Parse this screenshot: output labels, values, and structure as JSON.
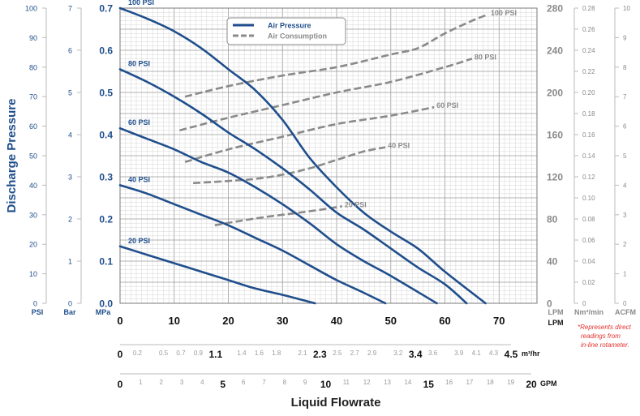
{
  "chart_data": {
    "type": "line",
    "xlabel": "Liquid Flowrate",
    "ylabel": "Discharge Pressure",
    "xlim": [
      0,
      77
    ],
    "ylim": [
      0,
      0.7
    ],
    "grid": true,
    "legend_position": "top-center",
    "colors": {
      "air_pressure": "#1f4e8c",
      "air_consumption": "#8a8a8a",
      "note": "#e0312c"
    },
    "legend": [
      {
        "label": "Air Pressure",
        "style": "solid"
      },
      {
        "label": "Air Consumption",
        "style": "dashed"
      }
    ],
    "axes": {
      "lpm": {
        "unit": "LPM",
        "ticks": [
          "0",
          "10",
          "20",
          "30",
          "40",
          "50",
          "60",
          "70"
        ],
        "values": [
          0,
          10,
          20,
          30,
          40,
          50,
          60,
          70
        ]
      },
      "m3hr": {
        "unit": "m³/hr",
        "major": [
          {
            "label": "0",
            "v": 0
          },
          {
            "label": "1.1",
            "v": 1.1
          },
          {
            "label": "2.3",
            "v": 2.3
          },
          {
            "label": "3.4",
            "v": 3.4
          },
          {
            "label": "4.5",
            "v": 4.5
          }
        ],
        "minor": [
          {
            "label": "0.2",
            "v": 0.2
          },
          {
            "label": "0.5",
            "v": 0.5
          },
          {
            "label": "0.7",
            "v": 0.7
          },
          {
            "label": "0.9",
            "v": 0.9
          },
          {
            "label": "1.4",
            "v": 1.4
          },
          {
            "label": "1.6",
            "v": 1.6
          },
          {
            "label": "1.8",
            "v": 1.8
          },
          {
            "label": "2.1",
            "v": 2.1
          },
          {
            "label": "2.5",
            "v": 2.5
          },
          {
            "label": "2.7",
            "v": 2.7
          },
          {
            "label": "2.9",
            "v": 2.9
          },
          {
            "label": "3.2",
            "v": 3.2
          },
          {
            "label": "3.6",
            "v": 3.6
          },
          {
            "label": "3.9",
            "v": 3.9
          },
          {
            "label": "4.1",
            "v": 4.1
          },
          {
            "label": "4.3",
            "v": 4.3
          }
        ]
      },
      "gpm": {
        "unit": "GPM",
        "major": [
          {
            "label": "0",
            "v": 0
          },
          {
            "label": "5",
            "v": 5
          },
          {
            "label": "10",
            "v": 10
          },
          {
            "label": "15",
            "v": 15
          },
          {
            "label": "20",
            "v": 20
          }
        ],
        "minor": [
          {
            "label": "1",
            "v": 1
          },
          {
            "label": "2",
            "v": 2
          },
          {
            "label": "3",
            "v": 3
          },
          {
            "label": "4",
            "v": 4
          },
          {
            "label": "6",
            "v": 6
          },
          {
            "label": "7",
            "v": 7
          },
          {
            "label": "8",
            "v": 8
          },
          {
            "label": "9",
            "v": 9
          },
          {
            "label": "11",
            "v": 11
          },
          {
            "label": "12",
            "v": 12
          },
          {
            "label": "13",
            "v": 13
          },
          {
            "label": "14",
            "v": 14
          },
          {
            "label": "16",
            "v": 16
          },
          {
            "label": "17",
            "v": 17
          },
          {
            "label": "18",
            "v": 18
          },
          {
            "label": "19",
            "v": 19
          }
        ]
      },
      "psi": {
        "unit": "PSI",
        "ticks": [
          "0",
          "10",
          "20",
          "30",
          "40",
          "50",
          "60",
          "70",
          "80",
          "90",
          "100"
        ],
        "values": [
          0,
          10,
          20,
          30,
          40,
          50,
          60,
          70,
          80,
          90,
          100
        ]
      },
      "bar": {
        "unit": "Bar",
        "ticks": [
          "0",
          "1",
          "2",
          "3",
          "4",
          "5",
          "6",
          "7"
        ],
        "values": [
          0,
          1,
          2,
          3,
          4,
          5,
          6,
          7
        ]
      },
      "mpa": {
        "unit": "MPa",
        "ticks": [
          "0.0",
          "0.1",
          "0.2",
          "0.3",
          "0.4",
          "0.5",
          "0.6",
          "0.7"
        ],
        "values": [
          0,
          0.1,
          0.2,
          0.3,
          0.4,
          0.5,
          0.6,
          0.7
        ]
      },
      "air_lpm": {
        "unit": "LPM",
        "ticks": [
          "0",
          "40",
          "80",
          "120",
          "160",
          "200",
          "240",
          "280"
        ],
        "values": [
          0,
          40,
          80,
          120,
          160,
          200,
          240,
          280
        ]
      },
      "nm3min": {
        "unit": "Nm³/min",
        "ticks": [
          "0",
          "0.02",
          "0.04",
          "0.06",
          "0.08",
          "0.10",
          "0.12",
          "0.14",
          "0.16",
          "0.18",
          "0.20",
          "0.22",
          "0.24",
          "0.26",
          "0.28"
        ],
        "values": [
          0,
          0.02,
          0.04,
          0.06,
          0.08,
          0.1,
          0.12,
          0.14,
          0.16,
          0.18,
          0.2,
          0.22,
          0.24,
          0.26,
          0.28
        ]
      },
      "acfm": {
        "unit": "ACFM",
        "ticks": [
          "0",
          "1",
          "2",
          "3",
          "4",
          "5",
          "6",
          "7",
          "8",
          "9",
          "10"
        ],
        "values": [
          0,
          1,
          2,
          3,
          4,
          5,
          6,
          7,
          8,
          9,
          10
        ]
      }
    },
    "series": [
      {
        "name": "100 PSI",
        "kind": "air_pressure",
        "x": [
          0,
          5,
          10,
          15,
          20,
          25,
          30,
          35,
          40,
          45,
          50,
          55,
          60,
          67.5
        ],
        "y": [
          0.7,
          0.675,
          0.645,
          0.605,
          0.555,
          0.505,
          0.435,
          0.345,
          0.275,
          0.215,
          0.17,
          0.13,
          0.075,
          0.0
        ]
      },
      {
        "name": "80 PSI",
        "kind": "air_pressure",
        "x": [
          0,
          5,
          10,
          15,
          20,
          25,
          30,
          35,
          40,
          45,
          50,
          55,
          60,
          64
        ],
        "y": [
          0.555,
          0.525,
          0.49,
          0.45,
          0.405,
          0.365,
          0.32,
          0.27,
          0.215,
          0.175,
          0.13,
          0.085,
          0.045,
          0.0
        ]
      },
      {
        "name": "60 PSI",
        "kind": "air_pressure",
        "x": [
          0,
          5,
          10,
          15,
          20,
          25,
          30,
          35,
          40,
          45,
          50,
          58.5
        ],
        "y": [
          0.415,
          0.39,
          0.365,
          0.335,
          0.31,
          0.275,
          0.235,
          0.19,
          0.14,
          0.1,
          0.065,
          0.0
        ]
      },
      {
        "name": "40 PSI",
        "kind": "air_pressure",
        "x": [
          0,
          5,
          10,
          15,
          20,
          25,
          30,
          35,
          40,
          45,
          49
        ],
        "y": [
          0.28,
          0.26,
          0.235,
          0.21,
          0.185,
          0.155,
          0.125,
          0.09,
          0.055,
          0.025,
          0.0
        ]
      },
      {
        "name": "20 PSI",
        "kind": "air_pressure",
        "x": [
          0,
          5,
          10,
          15,
          20,
          25,
          30,
          36
        ],
        "y": [
          0.135,
          0.115,
          0.095,
          0.075,
          0.055,
          0.035,
          0.02,
          0.0
        ]
      },
      {
        "name": "100 PSI",
        "kind": "air_consumption",
        "x": [
          12,
          20,
          30,
          40,
          50,
          55,
          60,
          65,
          68
        ],
        "y": [
          0.49,
          0.515,
          0.54,
          0.56,
          0.59,
          0.605,
          0.64,
          0.67,
          0.685
        ]
      },
      {
        "name": "80 PSI",
        "kind": "air_consumption",
        "x": [
          11,
          20,
          30,
          40,
          50,
          60,
          65
        ],
        "y": [
          0.41,
          0.44,
          0.47,
          0.5,
          0.525,
          0.56,
          0.58
        ]
      },
      {
        "name": "60 PSI",
        "kind": "air_consumption",
        "x": [
          12,
          20,
          30,
          40,
          50,
          58
        ],
        "y": [
          0.335,
          0.365,
          0.395,
          0.425,
          0.445,
          0.465
        ]
      },
      {
        "name": "40 PSI",
        "kind": "air_consumption",
        "x": [
          13.5,
          20,
          25,
          30,
          35,
          40,
          45,
          49
        ],
        "y": [
          0.285,
          0.29,
          0.295,
          0.305,
          0.32,
          0.34,
          0.36,
          0.37
        ]
      },
      {
        "name": "20 PSI",
        "kind": "air_consumption",
        "x": [
          17.5,
          22,
          27,
          32,
          37,
          41
        ],
        "y": [
          0.185,
          0.195,
          0.205,
          0.213,
          0.222,
          0.23
        ]
      }
    ],
    "note": [
      "*Represents direct",
      "readings from",
      "in-line rotameter."
    ]
  }
}
